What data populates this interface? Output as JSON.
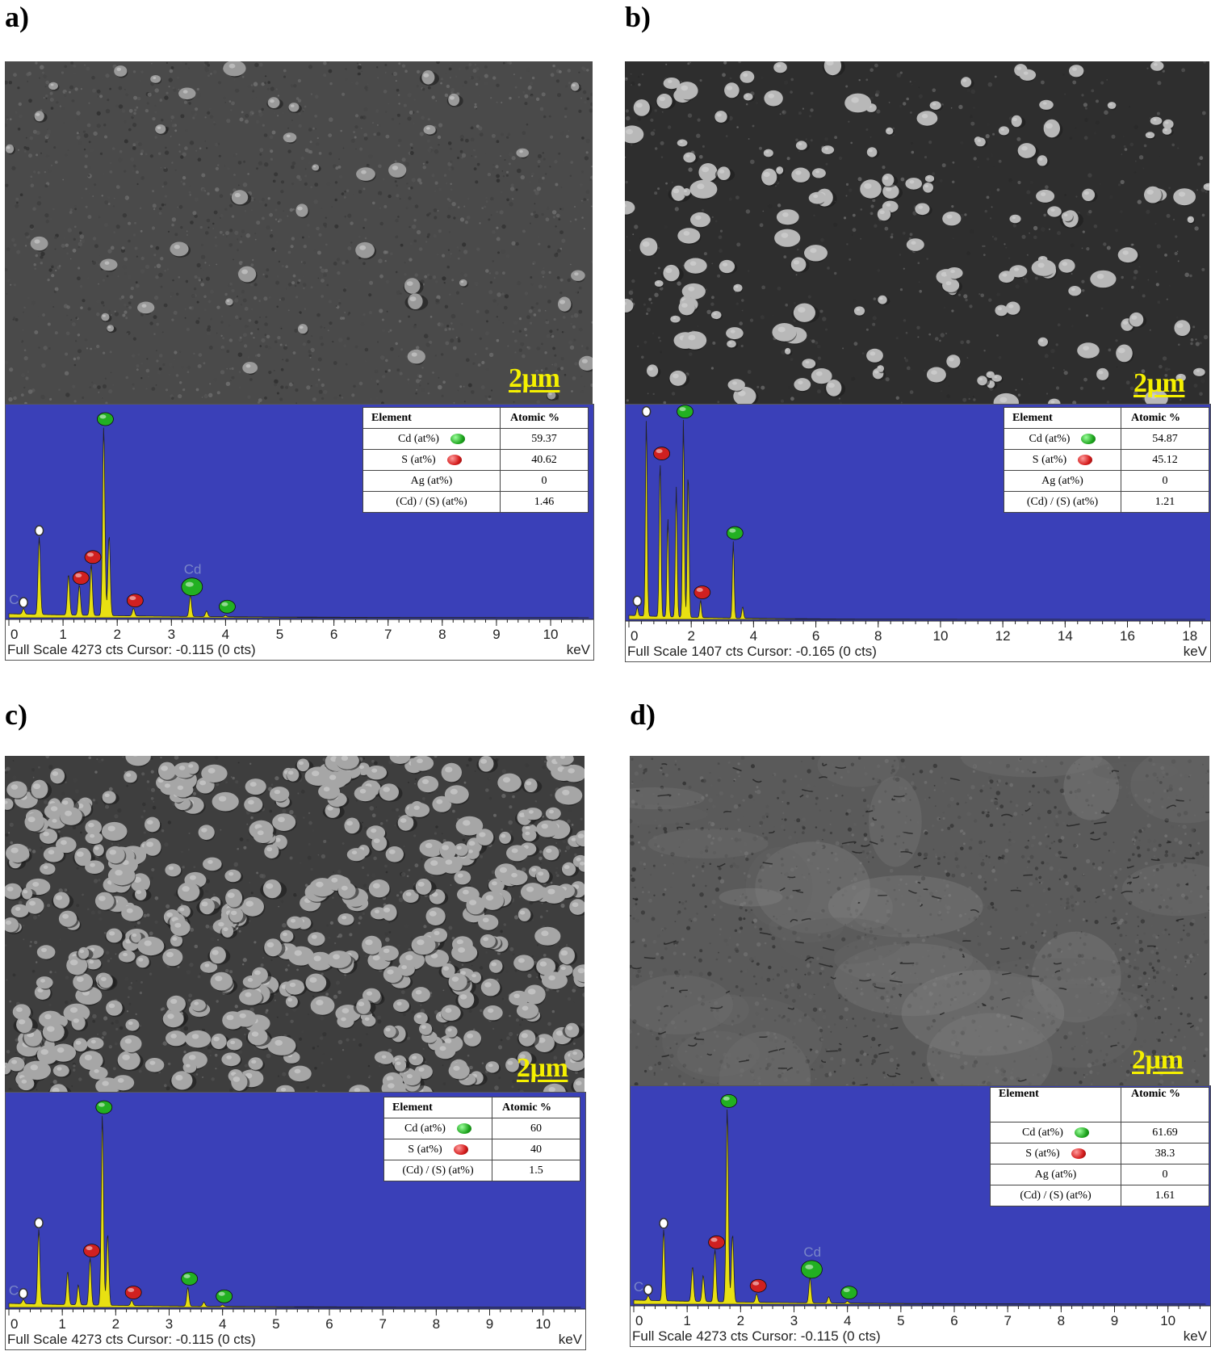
{
  "panels": [
    {
      "label": "a)",
      "scale_bar": "2µm",
      "table": {
        "header": [
          "Element",
          "Atomic %"
        ],
        "rows": [
          {
            "label": "Cd (at%)",
            "marker": "green",
            "value": "59.37"
          },
          {
            "label": "S (at%)",
            "marker": "red",
            "value": "40.62"
          },
          {
            "label": "Ag (at%)",
            "marker": "",
            "value": "0"
          },
          {
            "label": "(Cd) / (S) (at%)",
            "marker": "",
            "value": "1.46"
          }
        ]
      },
      "footer": "Full Scale 4273 cts Cursor: -0.115  (0 cts)",
      "unit": "keV",
      "peak_labels": [
        "C",
        "Cd"
      ]
    },
    {
      "label": "b)",
      "scale_bar": "2µm",
      "table": {
        "header": [
          "Element",
          "Atomic %"
        ],
        "rows": [
          {
            "label": "Cd (at%)",
            "marker": "green",
            "value": "54.87"
          },
          {
            "label": "S (at%)",
            "marker": "red",
            "value": "45.12"
          },
          {
            "label": "Ag (at%)",
            "marker": "",
            "value": "0"
          },
          {
            "label": "(Cd) / (S) (at%)",
            "marker": "",
            "value": "1.21"
          }
        ]
      },
      "footer": "Full Scale 1407 cts Cursor: -0.165  (0 cts)",
      "unit": "keV",
      "peak_labels": []
    },
    {
      "label": "c)",
      "scale_bar": "2µm",
      "table": {
        "header": [
          "Element",
          "Atomic %"
        ],
        "rows": [
          {
            "label": "Cd (at%)",
            "marker": "green",
            "value": "60"
          },
          {
            "label": "S (at%)",
            "marker": "red",
            "value": "40"
          },
          {
            "label": "(Cd) / (S) (at%)",
            "marker": "",
            "value": "1.5"
          }
        ]
      },
      "footer": "Full Scale 4273 cts Cursor: -0.115  (0 cts)",
      "unit": "keV",
      "peak_labels": [
        "C"
      ]
    },
    {
      "label": "d)",
      "scale_bar": "2µm",
      "table": {
        "header": [
          "Element",
          "Atomic %"
        ],
        "rows": [
          {
            "label": "Cd (at%)",
            "marker": "green",
            "value": "61.69"
          },
          {
            "label": "S (at%)",
            "marker": "red",
            "value": "38.3"
          },
          {
            "label": "Ag (at%)",
            "marker": "",
            "value": "0"
          },
          {
            "label": "(Cd) / (S) (at%)",
            "marker": "",
            "value": "1.61"
          }
        ]
      },
      "footer": "Full Scale 4273 cts Cursor: -0.115  (0 cts)",
      "unit": "keV",
      "peak_labels": [
        "C",
        "Cd"
      ]
    }
  ],
  "chart_data": [
    {
      "type": "line",
      "panel": "a)",
      "xlim": [
        0,
        10.7
      ],
      "xticks": [
        0,
        1,
        2,
        3,
        4,
        5,
        6,
        7,
        8,
        9,
        10
      ],
      "xlabel": "keV",
      "ylim": [
        0,
        4273
      ],
      "peaks": [
        {
          "x": 0.27,
          "y": 120,
          "marker": "white",
          "label": "C"
        },
        {
          "x": 0.56,
          "y": 1640,
          "marker": "white"
        },
        {
          "x": 1.1,
          "y": 860,
          "marker": ""
        },
        {
          "x": 1.3,
          "y": 640,
          "marker": "red"
        },
        {
          "x": 1.52,
          "y": 1080,
          "marker": "red"
        },
        {
          "x": 1.75,
          "y": 4000,
          "marker": "green"
        },
        {
          "x": 1.85,
          "y": 1700,
          "marker": ""
        },
        {
          "x": 2.3,
          "y": 160,
          "marker": "red"
        },
        {
          "x": 3.35,
          "y": 450,
          "marker": "green",
          "label": "Cd"
        },
        {
          "x": 3.65,
          "y": 120,
          "marker": ""
        },
        {
          "x": 4.0,
          "y": 30,
          "marker": "green"
        }
      ]
    },
    {
      "type": "line",
      "panel": "b)",
      "xlim": [
        0,
        18.5
      ],
      "xticks": [
        0,
        2,
        4,
        6,
        8,
        10,
        12,
        14,
        16,
        18
      ],
      "xlabel": "keV",
      "ylim": [
        0,
        1407
      ],
      "peaks": [
        {
          "x": 0.27,
          "y": 60,
          "marker": "white"
        },
        {
          "x": 0.56,
          "y": 1370,
          "marker": "white"
        },
        {
          "x": 1.0,
          "y": 1080,
          "marker": "red"
        },
        {
          "x": 1.25,
          "y": 680,
          "marker": ""
        },
        {
          "x": 1.52,
          "y": 900,
          "marker": ""
        },
        {
          "x": 1.75,
          "y": 1370,
          "marker": "green"
        },
        {
          "x": 1.9,
          "y": 1000,
          "marker": ""
        },
        {
          "x": 2.3,
          "y": 120,
          "marker": "red"
        },
        {
          "x": 3.35,
          "y": 530,
          "marker": "green"
        },
        {
          "x": 3.65,
          "y": 80,
          "marker": ""
        }
      ]
    },
    {
      "type": "line",
      "panel": "c)",
      "xlim": [
        0,
        10.7
      ],
      "xticks": [
        0,
        1,
        2,
        3,
        4,
        5,
        6,
        7,
        8,
        9,
        10
      ],
      "xlabel": "keV",
      "ylim": [
        0,
        4273
      ],
      "peaks": [
        {
          "x": 0.27,
          "y": 90,
          "marker": "white",
          "label": "C"
        },
        {
          "x": 0.56,
          "y": 1570,
          "marker": "white"
        },
        {
          "x": 1.1,
          "y": 700,
          "marker": ""
        },
        {
          "x": 1.3,
          "y": 420,
          "marker": ""
        },
        {
          "x": 1.52,
          "y": 990,
          "marker": "red"
        },
        {
          "x": 1.75,
          "y": 4000,
          "marker": "green"
        },
        {
          "x": 1.85,
          "y": 1500,
          "marker": ""
        },
        {
          "x": 2.3,
          "y": 110,
          "marker": "red"
        },
        {
          "x": 3.35,
          "y": 400,
          "marker": "green"
        },
        {
          "x": 3.65,
          "y": 90,
          "marker": ""
        },
        {
          "x": 4.0,
          "y": 30,
          "marker": "green"
        }
      ]
    },
    {
      "type": "line",
      "panel": "d)",
      "xlim": [
        0,
        10.7
      ],
      "xticks": [
        0,
        1,
        2,
        3,
        4,
        5,
        6,
        7,
        8,
        9,
        10
      ],
      "xlabel": "keV",
      "ylim": [
        0,
        4273
      ],
      "peaks": [
        {
          "x": 0.27,
          "y": 100,
          "marker": "white",
          "label": "C"
        },
        {
          "x": 0.56,
          "y": 1470,
          "marker": "white"
        },
        {
          "x": 1.1,
          "y": 720,
          "marker": ""
        },
        {
          "x": 1.3,
          "y": 540,
          "marker": ""
        },
        {
          "x": 1.52,
          "y": 1080,
          "marker": "red"
        },
        {
          "x": 1.75,
          "y": 4000,
          "marker": "green"
        },
        {
          "x": 1.85,
          "y": 1400,
          "marker": ""
        },
        {
          "x": 2.3,
          "y": 180,
          "marker": "red"
        },
        {
          "x": 3.3,
          "y": 520,
          "marker": "green",
          "label": "Cd"
        },
        {
          "x": 3.65,
          "y": 130,
          "marker": ""
        },
        {
          "x": 4.0,
          "y": 40,
          "marker": "green"
        }
      ]
    }
  ],
  "colors": {
    "eds_background": "#3a40b8",
    "spectrum_fill": "#e8e012",
    "scale_bar": "#f5f000",
    "cd_marker": "#22b022",
    "s_marker": "#d02020"
  }
}
